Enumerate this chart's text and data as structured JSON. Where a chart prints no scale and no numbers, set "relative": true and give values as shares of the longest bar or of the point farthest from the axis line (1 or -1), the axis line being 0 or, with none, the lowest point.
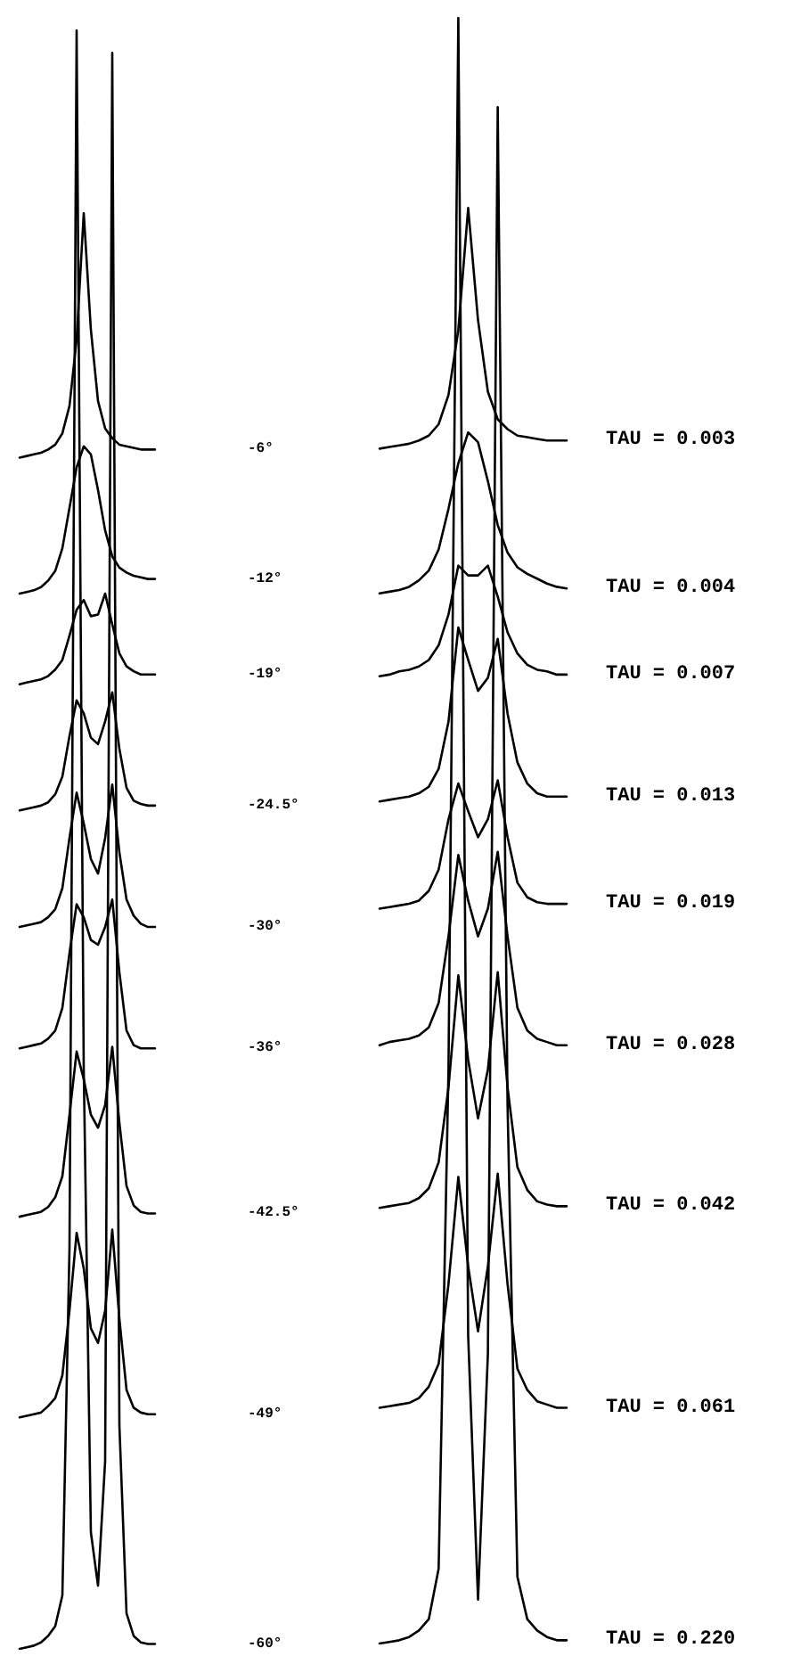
{
  "chart_data": [
    {
      "type": "line",
      "relative": true,
      "marker": "none",
      "categories": [
        null,
        null,
        null,
        null,
        null,
        null,
        null,
        null,
        null,
        null,
        null,
        null,
        null,
        null,
        null,
        null,
        null,
        null,
        null,
        null
      ],
      "series": [
        {
          "name": "-6°",
          "color": "#000000",
          "values": [
            0.736,
            0.737,
            0.738,
            0.739,
            0.741,
            0.744,
            0.751,
            0.768,
            0.809,
            0.887,
            0.815,
            0.771,
            0.754,
            0.748,
            0.744,
            0.743,
            0.742,
            0.741,
            0.741,
            0.741
          ]
        },
        {
          "name": "-12°",
          "color": "#000000",
          "values": [
            0.652,
            0.653,
            0.654,
            0.656,
            0.66,
            0.666,
            0.68,
            0.705,
            0.73,
            0.743,
            0.738,
            0.716,
            0.691,
            0.675,
            0.668,
            0.665,
            0.663,
            0.662,
            0.661,
            0.661
          ]
        },
        {
          "name": "-19°",
          "color": "#000000",
          "values": [
            0.596,
            0.597,
            0.598,
            0.599,
            0.601,
            0.605,
            0.611,
            0.626,
            0.642,
            0.648,
            0.638,
            0.639,
            0.652,
            0.633,
            0.615,
            0.607,
            0.604,
            0.602,
            0.602,
            0.602
          ]
        },
        {
          "name": "-24.5°",
          "color": "#000000",
          "values": [
            0.518,
            0.519,
            0.52,
            0.521,
            0.523,
            0.528,
            0.539,
            0.564,
            0.586,
            0.578,
            0.563,
            0.559,
            0.573,
            0.591,
            0.556,
            0.532,
            0.524,
            0.522,
            0.521,
            0.521
          ]
        },
        {
          "name": "-30°",
          "color": "#000000",
          "values": [
            0.446,
            0.447,
            0.448,
            0.449,
            0.452,
            0.457,
            0.47,
            0.501,
            0.529,
            0.51,
            0.488,
            0.479,
            0.501,
            0.534,
            0.492,
            0.463,
            0.453,
            0.448,
            0.446,
            0.446
          ]
        },
        {
          "name": "-36°",
          "color": "#000000",
          "values": [
            0.371,
            0.372,
            0.373,
            0.374,
            0.377,
            0.382,
            0.396,
            0.43,
            0.46,
            0.452,
            0.438,
            0.435,
            0.446,
            0.463,
            0.418,
            0.382,
            0.373,
            0.371,
            0.371,
            0.371
          ]
        },
        {
          "name": "-42.5°",
          "color": "#000000",
          "values": [
            0.267,
            0.268,
            0.269,
            0.27,
            0.273,
            0.279,
            0.292,
            0.33,
            0.369,
            0.352,
            0.33,
            0.322,
            0.336,
            0.372,
            0.325,
            0.286,
            0.274,
            0.27,
            0.269,
            0.269
          ]
        },
        {
          "name": "-49°",
          "color": "#000000",
          "values": [
            0.143,
            0.144,
            0.145,
            0.146,
            0.15,
            0.155,
            0.169,
            0.209,
            0.257,
            0.235,
            0.198,
            0.189,
            0.209,
            0.259,
            0.204,
            0.16,
            0.149,
            0.146,
            0.145,
            0.145
          ]
        },
        {
          "name": "-60°",
          "color": "#000000",
          "values": [
            0,
            0.001,
            0.002,
            0.004,
            0.008,
            0.014,
            0.033,
            0.248,
            1,
            0.358,
            0.072,
            0.039,
            0.116,
            0.986,
            0.138,
            0.022,
            0.008,
            0.004,
            0.003,
            0.003
          ]
        }
      ]
    },
    {
      "type": "line",
      "relative": true,
      "marker": "none",
      "categories": [
        null,
        null,
        null,
        null,
        null,
        null,
        null,
        null,
        null,
        null,
        null,
        null,
        null,
        null,
        null,
        null,
        null,
        null,
        null,
        null
      ],
      "series": [
        {
          "name": "TAU = 0.003",
          "color": "#000000",
          "values": [
            0.735,
            0.736,
            0.737,
            0.738,
            0.74,
            0.743,
            0.75,
            0.768,
            0.808,
            0.883,
            0.814,
            0.77,
            0.753,
            0.747,
            0.743,
            0.742,
            0.741,
            0.74,
            0.74,
            0.74
          ]
        },
        {
          "name": "TAU = 0.004",
          "color": "#000000",
          "values": [
            0.646,
            0.647,
            0.648,
            0.65,
            0.654,
            0.66,
            0.673,
            0.698,
            0.726,
            0.745,
            0.739,
            0.715,
            0.688,
            0.671,
            0.662,
            0.658,
            0.655,
            0.652,
            0.65,
            0.649
          ]
        },
        {
          "name": "TAU = 0.007",
          "color": "#000000",
          "values": [
            0.595,
            0.596,
            0.598,
            0.599,
            0.601,
            0.605,
            0.614,
            0.633,
            0.663,
            0.657,
            0.657,
            0.663,
            0.644,
            0.622,
            0.609,
            0.602,
            0.599,
            0.598,
            0.596,
            0.596
          ]
        },
        {
          "name": "TAU = 0.013",
          "color": "#000000",
          "values": [
            0.518,
            0.519,
            0.52,
            0.521,
            0.523,
            0.527,
            0.538,
            0.567,
            0.625,
            0.605,
            0.586,
            0.594,
            0.618,
            0.572,
            0.542,
            0.529,
            0.523,
            0.521,
            0.521,
            0.521
          ]
        },
        {
          "name": "TAU = 0.019",
          "color": "#000000",
          "values": [
            0.452,
            0.453,
            0.454,
            0.455,
            0.457,
            0.463,
            0.476,
            0.507,
            0.529,
            0.512,
            0.496,
            0.507,
            0.531,
            0.496,
            0.468,
            0.459,
            0.456,
            0.455,
            0.455,
            0.455
          ]
        },
        {
          "name": "TAU = 0.028",
          "color": "#000000",
          "values": [
            0.368,
            0.37,
            0.371,
            0.372,
            0.374,
            0.379,
            0.394,
            0.435,
            0.485,
            0.457,
            0.435,
            0.452,
            0.487,
            0.435,
            0.391,
            0.377,
            0.372,
            0.37,
            0.368,
            0.368
          ]
        },
        {
          "name": "TAU = 0.042",
          "color": "#000000",
          "values": [
            0.268,
            0.269,
            0.27,
            0.271,
            0.274,
            0.28,
            0.296,
            0.342,
            0.411,
            0.359,
            0.323,
            0.353,
            0.413,
            0.342,
            0.293,
            0.279,
            0.272,
            0.27,
            0.269,
            0.269
          ]
        },
        {
          "name": "TAU = 0.061",
          "color": "#000000",
          "values": [
            0.145,
            0.146,
            0.147,
            0.148,
            0.151,
            0.158,
            0.172,
            0.221,
            0.287,
            0.232,
            0.192,
            0.232,
            0.289,
            0.221,
            0.169,
            0.156,
            0.149,
            0.147,
            0.145,
            0.145
          ]
        },
        {
          "name": "TAU = 0.220",
          "color": "#000000",
          "values": [
            0,
            0.001,
            0.002,
            0.004,
            0.008,
            0.015,
            0.046,
            0.353,
            1,
            0.189,
            0.027,
            0.178,
            0.945,
            0.331,
            0.041,
            0.015,
            0.008,
            0.004,
            0.002,
            0.002
          ]
        }
      ]
    }
  ]
}
